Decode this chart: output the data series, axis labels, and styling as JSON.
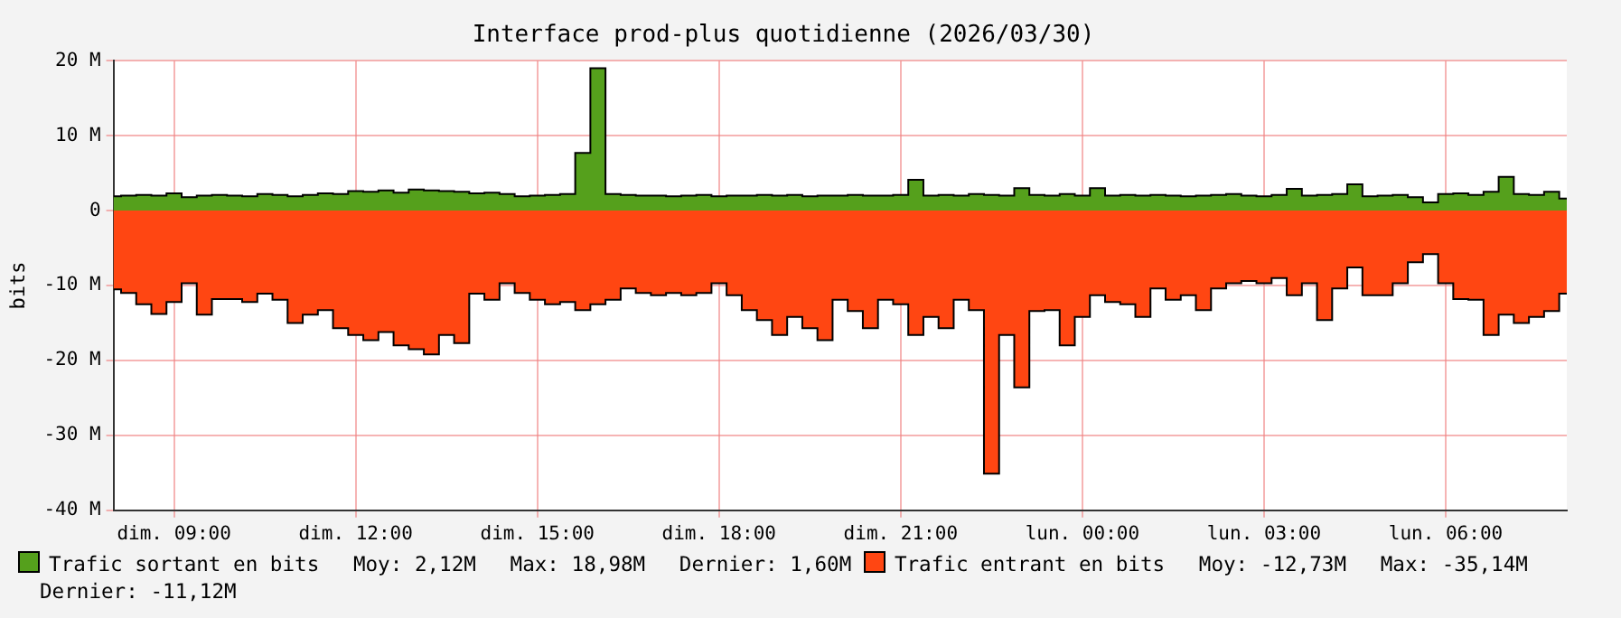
{
  "chart_data": {
    "type": "area",
    "title": "Interface prod-plus quotidienne (2026/03/30)",
    "ylabel": "bits",
    "x": [
      "2026-03-29T08:00",
      "2026-03-29T08:15",
      "2026-03-29T08:30",
      "2026-03-29T08:45",
      "2026-03-29T09:00",
      "2026-03-29T09:15",
      "2026-03-29T09:30",
      "2026-03-29T09:45",
      "2026-03-29T10:00",
      "2026-03-29T10:15",
      "2026-03-29T10:30",
      "2026-03-29T10:45",
      "2026-03-29T11:00",
      "2026-03-29T11:15",
      "2026-03-29T11:30",
      "2026-03-29T11:45",
      "2026-03-29T12:00",
      "2026-03-29T12:15",
      "2026-03-29T12:30",
      "2026-03-29T12:45",
      "2026-03-29T13:00",
      "2026-03-29T13:15",
      "2026-03-29T13:30",
      "2026-03-29T13:45",
      "2026-03-29T14:00",
      "2026-03-29T14:15",
      "2026-03-29T14:30",
      "2026-03-29T14:45",
      "2026-03-29T15:00",
      "2026-03-29T15:15",
      "2026-03-29T15:30",
      "2026-03-29T15:45",
      "2026-03-29T16:00",
      "2026-03-29T16:15",
      "2026-03-29T16:30",
      "2026-03-29T16:45",
      "2026-03-29T17:00",
      "2026-03-29T17:15",
      "2026-03-29T17:30",
      "2026-03-29T17:45",
      "2026-03-29T18:00",
      "2026-03-29T18:15",
      "2026-03-29T18:30",
      "2026-03-29T18:45",
      "2026-03-29T19:00",
      "2026-03-29T19:15",
      "2026-03-29T19:30",
      "2026-03-29T19:45",
      "2026-03-29T20:00",
      "2026-03-29T20:15",
      "2026-03-29T20:30",
      "2026-03-29T20:45",
      "2026-03-29T21:00",
      "2026-03-29T21:15",
      "2026-03-29T21:30",
      "2026-03-29T21:45",
      "2026-03-29T22:00",
      "2026-03-29T22:15",
      "2026-03-29T22:30",
      "2026-03-29T22:45",
      "2026-03-29T23:00",
      "2026-03-29T23:15",
      "2026-03-29T23:30",
      "2026-03-29T23:45",
      "2026-03-30T00:00",
      "2026-03-30T00:15",
      "2026-03-30T00:30",
      "2026-03-30T00:45",
      "2026-03-30T01:00",
      "2026-03-30T01:15",
      "2026-03-30T01:30",
      "2026-03-30T01:45",
      "2026-03-30T02:00",
      "2026-03-30T02:15",
      "2026-03-30T02:30",
      "2026-03-30T02:45",
      "2026-03-30T03:00",
      "2026-03-30T03:15",
      "2026-03-30T03:30",
      "2026-03-30T03:45",
      "2026-03-30T04:00",
      "2026-03-30T04:15",
      "2026-03-30T04:30",
      "2026-03-30T04:45",
      "2026-03-30T05:00",
      "2026-03-30T05:15",
      "2026-03-30T05:30",
      "2026-03-30T05:45",
      "2026-03-30T06:00",
      "2026-03-30T06:15",
      "2026-03-30T06:30",
      "2026-03-30T06:45",
      "2026-03-30T07:00",
      "2026-03-30T07:15",
      "2026-03-30T07:30",
      "2026-03-30T07:45",
      "2026-03-30T08:00"
    ],
    "series": [
      {
        "name": "Trafic sortant en bits",
        "color": "#55a01c",
        "values": [
          1.9,
          2.0,
          2.1,
          2.0,
          2.3,
          1.8,
          2.0,
          2.1,
          2.0,
          1.9,
          2.2,
          2.1,
          1.9,
          2.1,
          2.3,
          2.2,
          2.6,
          2.5,
          2.7,
          2.4,
          2.8,
          2.7,
          2.6,
          2.5,
          2.3,
          2.4,
          2.2,
          1.9,
          2.0,
          2.1,
          2.2,
          7.7,
          19.0,
          2.2,
          2.1,
          2.0,
          2.0,
          1.9,
          2.0,
          2.1,
          1.9,
          2.0,
          2.0,
          2.1,
          2.0,
          2.1,
          1.9,
          2.0,
          2.0,
          2.1,
          2.0,
          2.0,
          2.1,
          4.1,
          2.0,
          2.1,
          2.0,
          2.2,
          2.1,
          2.0,
          3.0,
          2.1,
          2.0,
          2.2,
          2.0,
          3.0,
          2.0,
          2.1,
          2.0,
          2.1,
          2.0,
          1.9,
          2.0,
          2.1,
          2.2,
          2.0,
          1.9,
          2.1,
          2.9,
          2.0,
          2.1,
          2.2,
          3.5,
          1.9,
          2.0,
          2.1,
          1.8,
          1.1,
          2.2,
          2.3,
          2.1,
          2.5,
          4.5,
          2.2,
          2.1,
          2.5,
          1.6
        ]
      },
      {
        "name": "Trafic entrant en bits",
        "color": "#ff4612",
        "values": [
          -10.5,
          -11,
          -12.5,
          -13.8,
          -12.2,
          -9.7,
          -13.9,
          -11.8,
          -11.8,
          -12.2,
          -11.1,
          -11.9,
          -15.0,
          -13.9,
          -13.3,
          -15.7,
          -16.6,
          -17.3,
          -16.2,
          -18.0,
          -18.5,
          -19.2,
          -16.6,
          -17.7,
          -11.1,
          -11.9,
          -9.7,
          -11.0,
          -11.9,
          -12.5,
          -12.2,
          -13.3,
          -12.5,
          -11.9,
          -10.4,
          -11.0,
          -11.3,
          -11.0,
          -11.3,
          -11.0,
          -9.7,
          -11.3,
          -13.3,
          -14.6,
          -16.6,
          -14.2,
          -15.7,
          -17.3,
          -11.9,
          -13.4,
          -15.7,
          -11.9,
          -12.5,
          -16.6,
          -14.2,
          -15.7,
          -11.9,
          -13.3,
          -35.1,
          -16.6,
          -23.6,
          -13.4,
          -13.3,
          -18.0,
          -14.2,
          -11.3,
          -12.2,
          -12.5,
          -14.2,
          -10.4,
          -11.9,
          -11.3,
          -13.3,
          -10.4,
          -9.7,
          -9.4,
          -9.7,
          -9.0,
          -11.3,
          -9.7,
          -14.6,
          -10.4,
          -7.6,
          -11.3,
          -11.3,
          -9.7,
          -6.9,
          -5.8,
          -9.7,
          -11.8,
          -11.9,
          -16.6,
          -13.9,
          -15.0,
          -14.2,
          -13.4,
          -11.1
        ]
      }
    ],
    "xlim": [
      "2026-03-29T08:00",
      "2026-03-30T08:00"
    ],
    "xticks": [
      {
        "value": "2026-03-29T09:00",
        "label": "dim. 09:00"
      },
      {
        "value": "2026-03-29T12:00",
        "label": "dim. 12:00"
      },
      {
        "value": "2026-03-29T15:00",
        "label": "dim. 15:00"
      },
      {
        "value": "2026-03-29T18:00",
        "label": "dim. 18:00"
      },
      {
        "value": "2026-03-29T21:00",
        "label": "dim. 21:00"
      },
      {
        "value": "2026-03-30T00:00",
        "label": "lun. 00:00"
      },
      {
        "value": "2026-03-30T03:00",
        "label": "lun. 03:00"
      },
      {
        "value": "2026-03-30T06:00",
        "label": "lun. 06:00"
      }
    ],
    "ylim": [
      -40,
      20
    ],
    "yticks": [
      {
        "value": -40,
        "label": "-40 M"
      },
      {
        "value": -30,
        "label": "-30 M"
      },
      {
        "value": -20,
        "label": "-20 M"
      },
      {
        "value": -10,
        "label": "-10 M"
      },
      {
        "value": 0,
        "label": "0"
      },
      {
        "value": 10,
        "label": "10 M"
      },
      {
        "value": 20,
        "label": "20 M"
      }
    ],
    "grid": true,
    "legend": "bottom",
    "line_style": "solid",
    "annotations": [
      "Moy: 2,12M",
      "Max: 18,98M",
      "Dernier: 1,60M",
      "Moy: -12,73M",
      "Max: -35,14M",
      "Dernier: -11,12M"
    ]
  }
}
